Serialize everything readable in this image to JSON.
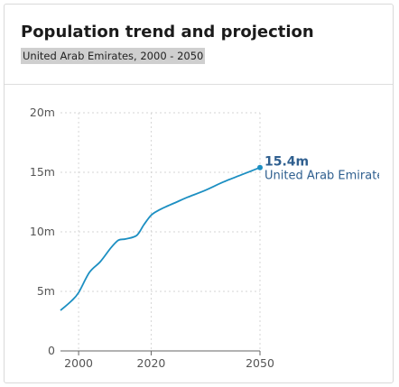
{
  "header": {
    "title": "Population trend and projection",
    "subtitle": "United Arab Emirates, 2000 - 2050"
  },
  "colors": {
    "line": "#1c8fc2",
    "label": "#2f5f8f",
    "grid": "#d6d6d6",
    "axis": "#666666"
  },
  "chart_data": {
    "type": "line",
    "title": "Population trend and projection",
    "subtitle": "United Arab Emirates, 2000 - 2050",
    "xlabel": "",
    "ylabel": "",
    "xlim": [
      1995,
      2050
    ],
    "ylim": [
      0,
      20000000
    ],
    "grid": true,
    "y_ticks": [
      {
        "value": 0,
        "label": "0"
      },
      {
        "value": 5000000,
        "label": "5m"
      },
      {
        "value": 10000000,
        "label": "10m"
      },
      {
        "value": 15000000,
        "label": "15m"
      },
      {
        "value": 20000000,
        "label": "20m"
      }
    ],
    "x_ticks": [
      {
        "value": 2000,
        "label": "2000"
      },
      {
        "value": 2020,
        "label": "2020"
      },
      {
        "value": 2050,
        "label": "2050"
      }
    ],
    "series": [
      {
        "name": "United Arab Emirates",
        "x": [
          1995,
          1998,
          2000,
          2003,
          2006,
          2009,
          2011,
          2013,
          2016,
          2018,
          2020,
          2022,
          2024,
          2027,
          2030,
          2035,
          2040,
          2045,
          2050
        ],
        "values": [
          3400000,
          4200000,
          4900000,
          6600000,
          7500000,
          8700000,
          9300000,
          9400000,
          9700000,
          10600000,
          11400000,
          11800000,
          12100000,
          12500000,
          12900000,
          13500000,
          14200000,
          14800000,
          15400000
        ]
      }
    ],
    "end_label": {
      "value": "15.4m",
      "series": "United Arab Emirates"
    }
  }
}
